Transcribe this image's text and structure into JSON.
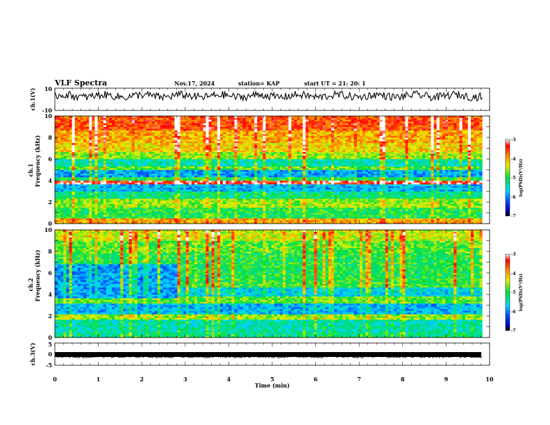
{
  "header": {
    "title": "VLF  Spectra",
    "date": "Nov.17, 2024",
    "station": "station= KAP",
    "start_time": "start  UT  =   21: 20: 1"
  },
  "chart_data": [
    {
      "id": "ch1-waveform",
      "type": "line",
      "ylabel": "ch.1(V)",
      "ylim": [
        -10,
        10
      ],
      "ytick_labels": [
        "10",
        "-10"
      ],
      "xlim": [
        0,
        10
      ],
      "x_end_data": 9.83,
      "baseline": 3,
      "amplitude": 3.5
    },
    {
      "id": "ch1-spectrogram",
      "type": "heatmap",
      "ylabel_line1": "ch.1",
      "ylabel_line2": "Frequency  (kHz)",
      "ylim": [
        0,
        10
      ],
      "ytick_labels": [
        "0",
        "2",
        "4",
        "6",
        "8",
        "10"
      ],
      "xlim": [
        0,
        10
      ],
      "x_end_data": 9.83,
      "colorbar": {
        "label": "log(PSD)(V²/Hz)",
        "range": [
          -7,
          -3
        ],
        "tick_labels": [
          "-7",
          "-6",
          "-5",
          "-4",
          "-3"
        ]
      },
      "bands": [
        {
          "from": 0,
          "to": 0.5,
          "level": 0.75
        },
        {
          "from": 0.5,
          "to": 1.5,
          "level": 0.5
        },
        {
          "from": 1.5,
          "to": 2.4,
          "level": 0.6
        },
        {
          "from": 2.4,
          "to": 3.0,
          "level": 0.45
        },
        {
          "from": 3.0,
          "to": 3.7,
          "level": 0.3
        },
        {
          "from": 3.7,
          "to": 3.95,
          "level": 0.92
        },
        {
          "from": 3.95,
          "to": 4.4,
          "level": 0.5
        },
        {
          "from": 4.4,
          "to": 5.0,
          "level": 0.28
        },
        {
          "from": 5.0,
          "to": 5.3,
          "level": 0.55
        },
        {
          "from": 5.3,
          "to": 6.0,
          "level": 0.4
        },
        {
          "from": 6.0,
          "to": 6.6,
          "level": 0.6
        },
        {
          "from": 6.6,
          "to": 7.5,
          "level": 0.7
        },
        {
          "from": 7.5,
          "to": 8.6,
          "level": 0.75
        },
        {
          "from": 8.6,
          "to": 10,
          "level": 0.85
        }
      ]
    },
    {
      "id": "ch2-spectrogram",
      "type": "heatmap",
      "ylabel_line1": "ch.2",
      "ylabel_line2": "Frequency  (kHz)",
      "ylim": [
        0,
        10
      ],
      "ytick_labels": [
        "0",
        "2",
        "4",
        "6",
        "8",
        "10"
      ],
      "xlim": [
        0,
        10
      ],
      "x_end_data": 9.83,
      "colorbar": {
        "label": "log(PSD)(V²/Hz)",
        "range": [
          -7,
          -3
        ],
        "tick_labels": [
          "-7",
          "-6",
          "-5",
          "-4",
          "-3"
        ]
      },
      "bands": [
        {
          "from": 0,
          "to": 0.5,
          "level": 0.45
        },
        {
          "from": 0.5,
          "to": 1.7,
          "level": 0.4
        },
        {
          "from": 1.7,
          "to": 2.1,
          "level": 0.6
        },
        {
          "from": 2.1,
          "to": 3.1,
          "level": 0.3
        },
        {
          "from": 3.1,
          "to": 3.9,
          "level": 0.55
        },
        {
          "from": 3.9,
          "to": 4.6,
          "level": 0.35
        },
        {
          "from": 4.6,
          "to": 5.5,
          "level": 0.52
        },
        {
          "from": 5.5,
          "to": 6.6,
          "level": 0.5
        },
        {
          "from": 6.6,
          "to": 7.8,
          "level": 0.5
        },
        {
          "from": 7.8,
          "to": 9.0,
          "level": 0.55
        },
        {
          "from": 9.0,
          "to": 10,
          "level": 0.65
        }
      ],
      "early_segment": {
        "until_min": 2.85,
        "from_khz": 3.7,
        "to_khz": 6.9,
        "level": 0.28
      }
    },
    {
      "id": "ch3-waveform",
      "type": "line",
      "ylabel": "ch.3(V)",
      "ylim": [
        -5,
        5
      ],
      "ytick_labels": [
        "5",
        "0",
        "-5"
      ],
      "xlim": [
        0,
        10
      ],
      "x_end_data": 9.83,
      "baseline": -1.2,
      "amplitude": 0.4,
      "xlabel": "Time  (min)",
      "xtick_labels": [
        "0",
        "1",
        "2",
        "3",
        "4",
        "5",
        "6",
        "7",
        "8",
        "9",
        "10"
      ]
    }
  ]
}
